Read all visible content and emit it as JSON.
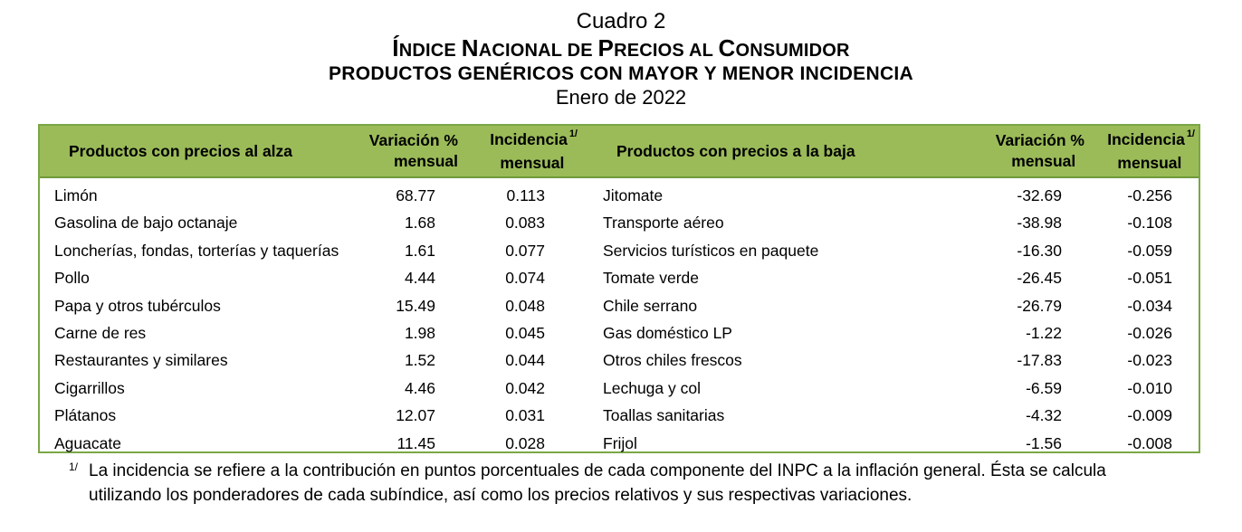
{
  "title": {
    "line1": "Cuadro 2",
    "line2_caps": [
      [
        "Í",
        "NDICE "
      ],
      [
        "N",
        "ACIONAL DE "
      ],
      [
        "P",
        "RECIOS AL "
      ],
      [
        "C",
        "ONSUMIDOR"
      ]
    ],
    "line3": "PRODUCTOS GENÉRICOS CON MAYOR Y MENOR INCIDENCIA",
    "line4": "Enero de 2022"
  },
  "headers": {
    "up_products": "Productos con precios al alza",
    "up_variation_l1": "Variación %",
    "up_variation_l2": "mensual",
    "up_incidence_l1": "Incidencia",
    "up_incidence_l2": "mensual",
    "down_products": "Productos con precios a la baja",
    "down_variation_l1": "Variación %",
    "down_variation_l2": "mensual",
    "down_incidence_l1": "Incidencia",
    "down_incidence_l2": "mensual",
    "note_mark": "1/"
  },
  "rows": [
    {
      "up": "Limón",
      "up_var": "68.77",
      "up_inc": "0.113",
      "down": "Jitomate",
      "down_var": "-32.69",
      "down_inc": "-0.256"
    },
    {
      "up": "Gasolina de bajo octanaje",
      "up_var": "1.68",
      "up_inc": "0.083",
      "down": "Transporte aéreo",
      "down_var": "-38.98",
      "down_inc": "-0.108"
    },
    {
      "up": "Loncherías, fondas, torterías y taquerías",
      "up_var": "1.61",
      "up_inc": "0.077",
      "down": "Servicios turísticos en paquete",
      "down_var": "-16.30",
      "down_inc": "-0.059"
    },
    {
      "up": "Pollo",
      "up_var": "4.44",
      "up_inc": "0.074",
      "down": "Tomate verde",
      "down_var": "-26.45",
      "down_inc": "-0.051"
    },
    {
      "up": "Papa y otros tubérculos",
      "up_var": "15.49",
      "up_inc": "0.048",
      "down": "Chile serrano",
      "down_var": "-26.79",
      "down_inc": "-0.034"
    },
    {
      "up": "Carne de res",
      "up_var": "1.98",
      "up_inc": "0.045",
      "down": "Gas doméstico LP",
      "down_var": "-1.22",
      "down_inc": "-0.026"
    },
    {
      "up": "Restaurantes y similares",
      "up_var": "1.52",
      "up_inc": "0.044",
      "down": "Otros chiles frescos",
      "down_var": "-17.83",
      "down_inc": "-0.023"
    },
    {
      "up": "Cigarrillos",
      "up_var": "4.46",
      "up_inc": "0.042",
      "down": "Lechuga y col",
      "down_var": "-6.59",
      "down_inc": "-0.010"
    },
    {
      "up": "Plátanos",
      "up_var": "12.07",
      "up_inc": "0.031",
      "down": "Toallas sanitarias",
      "down_var": "-4.32",
      "down_inc": "-0.009"
    },
    {
      "up": "Aguacate",
      "up_var": "11.45",
      "up_inc": "0.028",
      "down": "Frijol",
      "down_var": "-1.56",
      "down_inc": "-0.008"
    }
  ],
  "footnote": {
    "mark": "1/",
    "text": "La incidencia se refiere a la contribución en puntos porcentuales de cada componente del INPC a la inflación general. Ésta se calcula utilizando los ponderadores de cada subíndice, así como los precios relativos y sus respectivas variaciones."
  },
  "colors": {
    "header_bg": "#9bbb59",
    "border": "#7aa746"
  }
}
